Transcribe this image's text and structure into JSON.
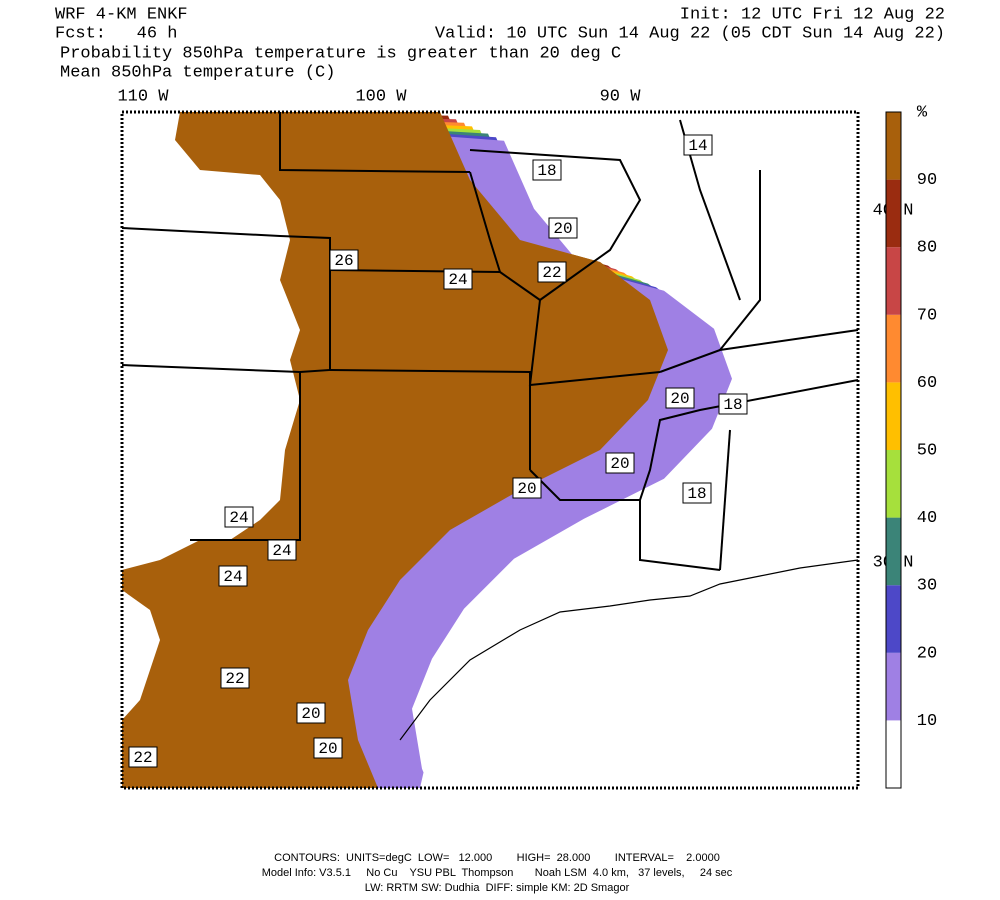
{
  "header": {
    "model": "WRF 4-KM ENKF",
    "forecast": "Fcst:   46 h",
    "init": "Init: 12 UTC Fri 12 Aug 22",
    "valid": "Valid: 10 UTC Sun 14 Aug 22 (05 CDT Sun 14 Aug 22)",
    "fields": [
      "Probability 850hPa temperature is greater than 20 deg C",
      "Mean 850hPa temperature (C)"
    ]
  },
  "map": {
    "lon_labels": [
      "110 W",
      "100 W",
      "90 W"
    ],
    "lat_labels": [
      "40 N",
      "30 N"
    ],
    "contour_labels": [
      "14",
      "18",
      "20",
      "26",
      "24",
      "22",
      "20",
      "18",
      "20",
      "20",
      "18",
      "24",
      "24",
      "24",
      "22",
      "20",
      "20",
      "22"
    ]
  },
  "colorbar": {
    "unit": "%",
    "ticks": [
      10,
      20,
      30,
      40,
      50,
      60,
      70,
      80,
      90
    ],
    "colors": [
      "#ffffff",
      "#9f80e4",
      "#4d48c8",
      "#3b8478",
      "#a6e03c",
      "#ffbf00",
      "#ff8a30",
      "#c84646",
      "#9a2c10",
      "#a8600c"
    ]
  },
  "footer": [
    "CONTOURS:  UNITS=degC  LOW=   12.000        HIGH=  28.000        INTERVAL=    2.0000",
    "Model Info: V3.5.1     No Cu    YSU PBL  Thompson       Noah LSM  4.0 km,   37 levels,     24 sec",
    "LW: RRTM SW: Dudhia  DIFF: simple KM: 2D Smagor"
  ]
}
